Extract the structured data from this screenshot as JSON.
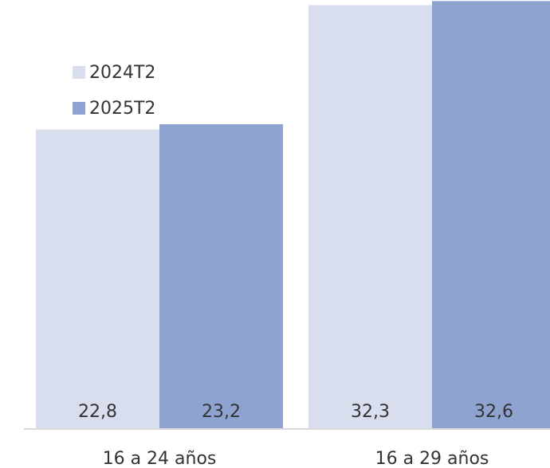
{
  "chart_data": {
    "type": "bar",
    "categories": [
      "16 a 24 años",
      "16 a 29 años"
    ],
    "series": [
      {
        "name": "2024T2",
        "values": [
          22.8,
          32.3
        ],
        "labels": [
          "22,8",
          "32,3"
        ],
        "color": "#d9deef"
      },
      {
        "name": "2025T2",
        "values": [
          23.2,
          32.6
        ],
        "labels": [
          "23,2",
          "32,6"
        ],
        "color": "#8fa3d1"
      }
    ],
    "legend_position": "top-left",
    "grid": false,
    "data_labels_position": "inside-base"
  }
}
